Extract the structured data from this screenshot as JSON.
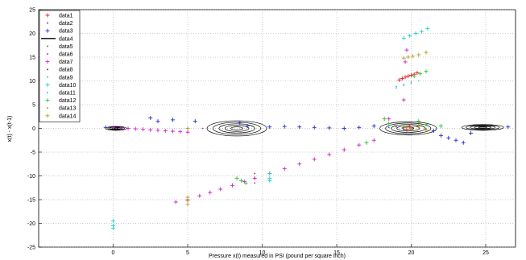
{
  "chart_data": {
    "type": "scatter",
    "title": "",
    "xlabel": "Pressure x(t) measured in PSI (pound per square inch)",
    "ylabel": "x(t) - x(t-1)",
    "xlim": [
      -5,
      27
    ],
    "ylim": [
      -25,
      25
    ],
    "xticks": [
      0,
      5,
      10,
      15,
      20,
      25
    ],
    "yticks": [
      -25,
      -20,
      -15,
      -10,
      -5,
      0,
      5,
      10,
      15,
      20,
      25
    ],
    "xtick_labels": [
      "0",
      "5",
      "10",
      "15",
      "20",
      "25"
    ],
    "ytick_labels": [
      "-25",
      "-20",
      "-15",
      "-10",
      "-5",
      "0",
      "5",
      "10",
      "15",
      "20",
      "25"
    ],
    "grid": true,
    "legend_position": "top-left",
    "series": [
      {
        "name": "data1",
        "color": "#e8202a",
        "marker": "plus",
        "x": [
          19.2,
          19.4,
          19.6,
          19.8,
          20.0,
          20.2,
          20.4,
          19.5,
          19.7,
          19.9
        ],
        "y": [
          10.2,
          10.5,
          10.8,
          11.0,
          11.2,
          11.4,
          11.7,
          0.2,
          -0.3,
          0.5
        ]
      },
      {
        "name": "data2",
        "color": "#2a62c0",
        "marker": "dot",
        "x": [
          19.0,
          19.5,
          20.0,
          20.5,
          21.0,
          18.5
        ],
        "y": [
          0.3,
          -0.2,
          0.1,
          0.4,
          -0.1,
          0.2
        ]
      },
      {
        "name": "data3",
        "color": "#1f2fd0",
        "marker": "plus",
        "x": [
          -0.5,
          2.5,
          4.0,
          5.5,
          9.0,
          10.5,
          11.5,
          12.5,
          13.5,
          14.5,
          15.5,
          16.5,
          17.5,
          21.5,
          22.0,
          22.5,
          23.0,
          23.5,
          24.0,
          26.5,
          3.0,
          8.5
        ],
        "y": [
          0.2,
          2.2,
          1.8,
          1.5,
          0.5,
          0.3,
          0.4,
          0.3,
          0.2,
          0.1,
          0.0,
          0.2,
          0.5,
          -0.5,
          -1.5,
          -2.0,
          -2.5,
          -3.0,
          -1.0,
          0.3,
          1.5,
          1.2
        ]
      },
      {
        "name": "data4",
        "color": "#000000",
        "marker": "none",
        "x": [],
        "y": []
      },
      {
        "name": "data5",
        "color": "#2aa52a",
        "marker": "dot",
        "x": [
          0.2,
          5.0,
          9.5,
          20.0
        ],
        "y": [
          0.0,
          0.0,
          0.0,
          0.0
        ]
      },
      {
        "name": "data6",
        "color": "#e020e0",
        "marker": "dot",
        "x": [
          0.5,
          6.0
        ],
        "y": [
          0.0,
          0.0
        ]
      },
      {
        "name": "data7",
        "color": "#cc22cc",
        "marker": "plus",
        "x": [
          0.0,
          0.5,
          1.0,
          1.5,
          2.0,
          2.5,
          3.0,
          3.5,
          4.0,
          4.5,
          5.0,
          4.2,
          5.0,
          5.8,
          6.5,
          7.2,
          8.0,
          8.8,
          9.5,
          10.5,
          11.5,
          12.5,
          13.5,
          14.5,
          15.5,
          16.5,
          17.5,
          18.5,
          19.5,
          19.6,
          19.7
        ],
        "y": [
          0.2,
          0.1,
          0.0,
          -0.1,
          -0.2,
          -0.3,
          -0.4,
          -0.5,
          -0.6,
          -0.7,
          -0.8,
          -15.5,
          -15.0,
          -14.2,
          -13.5,
          -12.8,
          -12.0,
          -11.2,
          -10.5,
          -9.5,
          -8.5,
          -7.5,
          -6.5,
          -5.5,
          -4.5,
          -3.5,
          -2.5,
          2.0,
          6.0,
          14.0,
          16.5
        ]
      },
      {
        "name": "data8",
        "color": "#c8202a",
        "marker": "dot",
        "x": [
          9.5,
          9.5,
          9.5
        ],
        "y": [
          -9.5,
          -10.5,
          -11.5
        ]
      },
      {
        "name": "data9",
        "color": "#33cccc",
        "marker": "dot",
        "x": [
          19.0,
          19.5,
          20.0,
          20.5
        ],
        "y": [
          8.5,
          9.0,
          9.5,
          10.0
        ]
      },
      {
        "name": "data10",
        "color": "#22d0d0",
        "marker": "plus",
        "x": [
          19.5,
          19.9,
          20.3,
          20.7,
          21.1,
          10.5,
          10.5,
          10.5,
          0.0,
          0.0,
          0.0
        ],
        "y": [
          19.0,
          19.5,
          20.0,
          20.4,
          21.0,
          -9.5,
          -10.5,
          -11.0,
          -19.5,
          -20.5,
          -21.0
        ]
      },
      {
        "name": "data11",
        "color": "#4fb8d4",
        "marker": "dot",
        "x": [
          19.0,
          19.5,
          20.0
        ],
        "y": [
          8.8,
          9.3,
          9.8
        ]
      },
      {
        "name": "data12",
        "color": "#2cc42c",
        "marker": "plus",
        "x": [
          8.3,
          8.6,
          8.9,
          17.0,
          18.2,
          18.5,
          19.5,
          20.0,
          20.5,
          21.0,
          20.2,
          20.6,
          21.0,
          22.0
        ],
        "y": [
          -10.5,
          -11.0,
          -11.5,
          -3.0,
          2.0,
          1.0,
          0.5,
          0.0,
          1.5,
          0.8,
          11.0,
          11.5,
          12.0,
          0.5
        ]
      },
      {
        "name": "data13",
        "color": "#e2703a",
        "marker": "dot",
        "x": [
          20.0,
          20.5
        ],
        "y": [
          0.5,
          -0.2
        ]
      },
      {
        "name": "data14",
        "color": "#b8a020",
        "marker": "plus",
        "x": [
          5.0,
          5.0,
          5.0,
          5.0,
          19.5,
          19.8,
          20.1,
          20.5,
          21.0,
          20.0,
          20.5,
          21.0
        ],
        "y": [
          0.0,
          -14.5,
          -15.2,
          -16.0,
          14.8,
          15.0,
          15.2,
          15.5,
          16.0,
          0.0,
          0.5,
          -0.3
        ]
      }
    ],
    "contours": [
      {
        "series": "data4",
        "cx": 8.3,
        "cy": 0.0,
        "rx": 2.0,
        "ry": 1.6
      },
      {
        "series": "data4",
        "cx": 19.8,
        "cy": 0.0,
        "rx": 1.9,
        "ry": 1.4
      },
      {
        "series": "data4",
        "cx": 24.8,
        "cy": 0.2,
        "rx": 1.4,
        "ry": 0.6
      },
      {
        "series": "data4",
        "cx": 0.2,
        "cy": 0.0,
        "rx": 0.7,
        "ry": 0.4
      }
    ]
  }
}
